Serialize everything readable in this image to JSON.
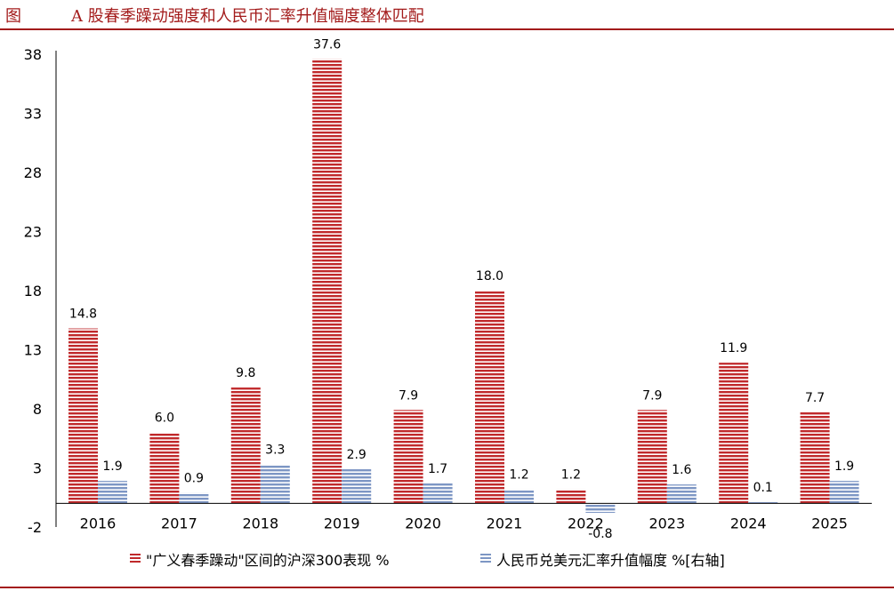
{
  "header": {
    "label": "图",
    "title": "A 股春季躁动强度和人民币汇率升值幅度整体匹配"
  },
  "colors": {
    "accent": "#a31b1b",
    "series1": "#c0292b",
    "series2": "#7d96c4"
  },
  "chart_data": {
    "type": "bar",
    "categories": [
      "2016",
      "2017",
      "2018",
      "2019",
      "2020",
      "2021",
      "2022",
      "2023",
      "2024",
      "2025"
    ],
    "series": [
      {
        "name": "\"广义春季躁动\"区间的沪深300表现 %",
        "values": [
          14.8,
          6.0,
          9.8,
          37.6,
          7.9,
          18.0,
          1.2,
          7.9,
          11.9,
          7.7
        ]
      },
      {
        "name": "人民币兑美元汇率升值幅度 %[右轴]",
        "values": [
          1.9,
          0.9,
          3.3,
          2.9,
          1.7,
          1.2,
          -0.8,
          1.6,
          0.1,
          1.9
        ]
      }
    ],
    "y_ticks": [
      38,
      33,
      28,
      23,
      18,
      13,
      8,
      3,
      -2
    ],
    "ylim": [
      -2,
      38
    ],
    "legend": "bottom",
    "grid": false
  }
}
